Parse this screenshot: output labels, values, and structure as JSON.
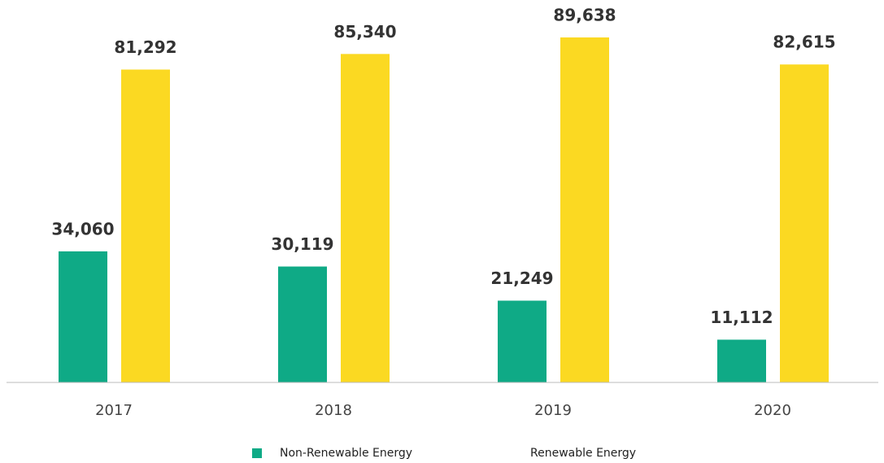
{
  "chart_data": {
    "type": "bar",
    "categories": [
      "2017",
      "2018",
      "2019",
      "2020"
    ],
    "series": [
      {
        "name": "Non-Renewable Energy",
        "color": "#0faa86",
        "values": [
          34060,
          30119,
          21249,
          11112
        ],
        "value_labels": [
          "34,060",
          "30,119",
          "21,249",
          "11,112"
        ]
      },
      {
        "name": "Renewable Energy",
        "color": "#fbd922",
        "values": [
          81292,
          85340,
          89638,
          82615
        ],
        "value_labels": [
          "81,292",
          "85,340",
          "89,638",
          "82,615"
        ]
      }
    ],
    "ylim": [
      0,
      100000
    ]
  }
}
